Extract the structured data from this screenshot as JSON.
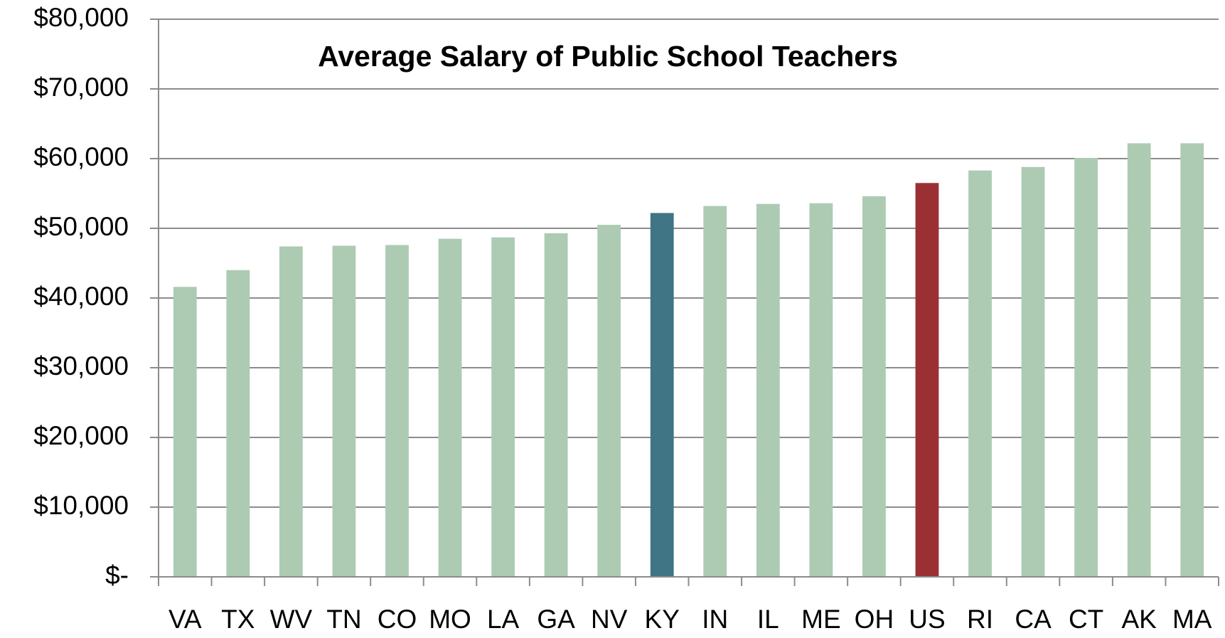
{
  "chart_data": {
    "type": "bar",
    "title": "Average Salary of Public School Teachers",
    "categories": [
      "VA",
      "TX",
      "WV",
      "TN",
      "CO",
      "MO",
      "LA",
      "GA",
      "NV",
      "KY",
      "IN",
      "IL",
      "ME",
      "OH",
      "US",
      "RI",
      "CA",
      "CT",
      "AK",
      "MA"
    ],
    "values": [
      41600,
      44000,
      47400,
      47500,
      47600,
      48500,
      48700,
      49300,
      50500,
      52200,
      53200,
      53500,
      53600,
      54600,
      56500,
      58300,
      58800,
      60100,
      62200,
      62200
    ],
    "colors": [
      "#adcbb2",
      "#adcbb2",
      "#adcbb2",
      "#adcbb2",
      "#adcbb2",
      "#adcbb2",
      "#adcbb2",
      "#adcbb2",
      "#adcbb2",
      "#3f7585",
      "#adcbb2",
      "#adcbb2",
      "#adcbb2",
      "#adcbb2",
      "#9b3033",
      "#adcbb2",
      "#adcbb2",
      "#adcbb2",
      "#adcbb2",
      "#adcbb2"
    ],
    "ylim": [
      0,
      80000
    ],
    "yticks": [
      {
        "value": 0,
        "label": "$-"
      },
      {
        "value": 10000,
        "label": "$10,000"
      },
      {
        "value": 20000,
        "label": "$20,000"
      },
      {
        "value": 30000,
        "label": "$30,000"
      },
      {
        "value": 40000,
        "label": "$40,000"
      },
      {
        "value": 50000,
        "label": "$50,000"
      },
      {
        "value": 60000,
        "label": "$60,000"
      },
      {
        "value": 70000,
        "label": "$70,000"
      },
      {
        "value": 80000,
        "label": "$80,000"
      }
    ],
    "grid": true
  }
}
